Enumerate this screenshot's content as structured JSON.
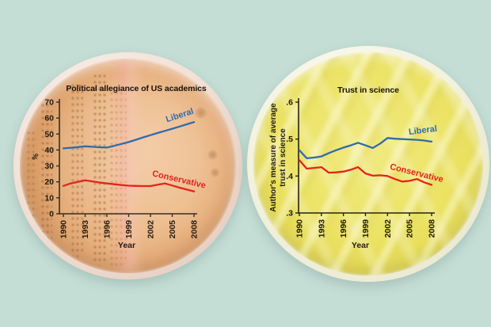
{
  "background_color": "#c4ded6",
  "chart_data": [
    {
      "type": "line",
      "title": "Political allegiance of US academics",
      "xlabel": "Year",
      "ylabel": "%",
      "ylabel_lines": [
        "%"
      ],
      "x_range": [
        1990,
        2008
      ],
      "ylim": [
        0,
        70
      ],
      "grid": false,
      "legend_position": "labels-on-lines",
      "y_tick_values": [
        0,
        10,
        20,
        30,
        40,
        50,
        60,
        70
      ],
      "y_tick_labels": [
        "0",
        "10",
        "20",
        "30",
        "40",
        "50",
        "60",
        "70"
      ],
      "x_tick_values": [
        1990,
        1993,
        1996,
        1999,
        2002,
        2005,
        2008
      ],
      "x_tick_labels": [
        "1990",
        "1993",
        "1996",
        "1999",
        "2002",
        "2005",
        "2008"
      ],
      "years": [
        1990,
        1991,
        1992,
        1993,
        1994,
        1995,
        1996,
        1997,
        1998,
        1999,
        2000,
        2001,
        2002,
        2003,
        2004,
        2005,
        2006,
        2007,
        2008
      ],
      "series": [
        {
          "name": "Liberal",
          "color": "#2e6bb0",
          "values": [
            41.0,
            41.4,
            41.8,
            42.3,
            42.0,
            41.7,
            41.5,
            42.6,
            43.8,
            45.0,
            46.4,
            47.9,
            49.3,
            50.7,
            52.0,
            53.3,
            54.7,
            56.1,
            57.5
          ]
        },
        {
          "name": "Conservative",
          "color": "#e4231e",
          "values": [
            17.5,
            19.0,
            20.0,
            21.0,
            20.3,
            19.6,
            19.0,
            18.5,
            18.0,
            17.6,
            17.5,
            17.4,
            17.4,
            18.2,
            19.0,
            17.7,
            16.4,
            15.2,
            14.0
          ]
        }
      ],
      "axis_color": "#382d20",
      "text_color": "#241c12"
    },
    {
      "type": "line",
      "title": "Trust in science",
      "xlabel": "Year",
      "ylabel": "Author's measure of average trust in science",
      "ylabel_lines": [
        "Author's measure of average",
        "trust in science"
      ],
      "x_range": [
        1990,
        2008
      ],
      "ylim": [
        0.3,
        0.6
      ],
      "grid": false,
      "legend_position": "labels-on-lines",
      "y_tick_values": [
        0.3,
        0.4,
        0.5,
        0.6
      ],
      "y_tick_labels": [
        ".3",
        ".4",
        ".5",
        ".6"
      ],
      "x_tick_values": [
        1990,
        1993,
        1996,
        1999,
        2002,
        2005,
        2008
      ],
      "x_tick_labels": [
        "1990",
        "1993",
        "1996",
        "1999",
        "2002",
        "2005",
        "2008"
      ],
      "years": [
        1990,
        1991,
        1992,
        1993,
        1994,
        1995,
        1996,
        1997,
        1998,
        1999,
        2000,
        2001,
        2002,
        2003,
        2004,
        2005,
        2006,
        2007,
        2008
      ],
      "series": [
        {
          "name": "Liberal",
          "color": "#2e6bb0",
          "values": [
            0.47,
            0.448,
            0.45,
            0.453,
            0.462,
            0.47,
            0.477,
            0.483,
            0.49,
            0.483,
            0.476,
            0.488,
            0.503,
            0.501,
            0.5,
            0.499,
            0.498,
            0.496,
            0.493
          ]
        },
        {
          "name": "Conservative",
          "color": "#e4231e",
          "values": [
            0.443,
            0.42,
            0.422,
            0.424,
            0.409,
            0.41,
            0.412,
            0.417,
            0.424,
            0.407,
            0.401,
            0.402,
            0.4,
            0.392,
            0.385,
            0.387,
            0.392,
            0.383,
            0.376
          ]
        }
      ],
      "axis_color": "#26221a",
      "text_color": "#1c1812"
    }
  ]
}
